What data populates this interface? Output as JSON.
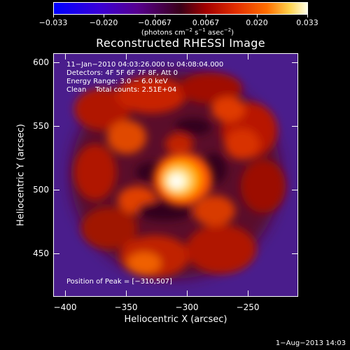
{
  "colorbar": {
    "tick_labels": [
      "−0.033",
      "−0.020",
      "−0.0067",
      "0.0067",
      "0.020",
      "0.033"
    ],
    "unit_prefix": "(photons cm",
    "unit_exp1": "−2",
    "unit_mid1": " s",
    "unit_exp2": "−1",
    "unit_mid2": " asec",
    "unit_exp3": "−2",
    "unit_suffix": ")"
  },
  "title": "Reconstructed RHESSI Image",
  "info": {
    "time_range": "11−Jan−2010 04:03:26.000 to 04:08:04.000",
    "detectors": "Detectors: 4F 5F 6F 7F 8F, Att 0",
    "energy": "Energy Range: 3.0 − 6.0 keV",
    "clean": "Clean    Total counts: 2.51E+04"
  },
  "peak": "Position of Peak = [−310,507]",
  "x_axis": {
    "title": "Heliocentric X (arcsec)",
    "ticks": [
      "−400",
      "−350",
      "−300",
      "−250"
    ]
  },
  "y_axis": {
    "title": "Heliocentric Y (arcsec)",
    "ticks": [
      "600",
      "550",
      "500",
      "450"
    ]
  },
  "timestamp": "1−Aug−2013 14:03"
}
